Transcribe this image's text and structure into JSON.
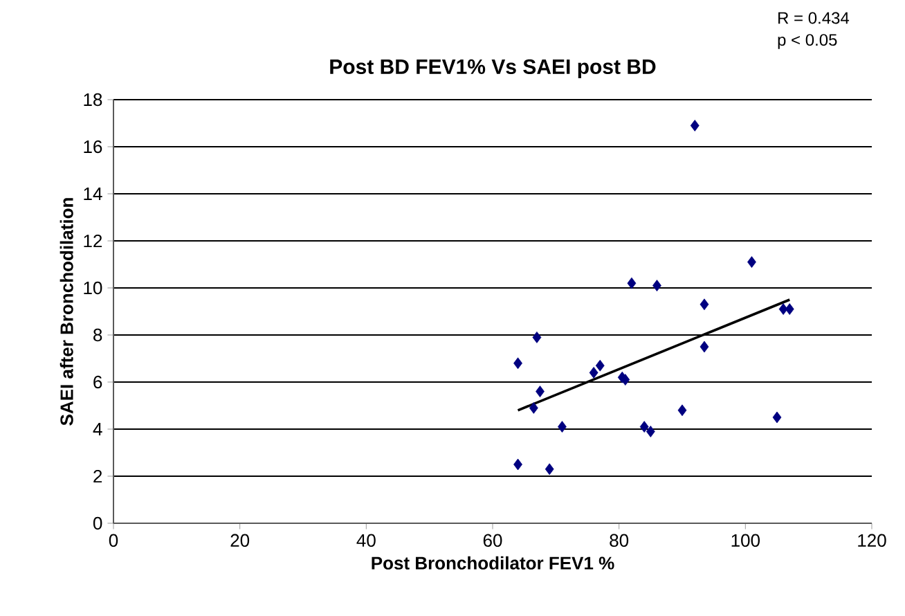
{
  "chart_data": {
    "type": "scatter",
    "title": "Post BD FEV1% Vs SAEI post BD",
    "xlabel": "Post Bronchodilator FEV1 %",
    "ylabel": "SAEI after Bronchodilation",
    "annotations": [
      "R = 0.434",
      "p  <  0.05"
    ],
    "series": [
      {
        "color": "#000080",
        "marker": "diamond",
        "x": [
          64,
          64,
          66.5,
          67,
          67.5,
          69,
          71,
          76,
          77,
          80.5,
          81,
          82,
          84,
          85,
          86,
          90,
          92,
          93.5,
          93.5,
          101,
          105,
          106,
          107
        ],
        "values": [
          6.8,
          2.5,
          4.9,
          7.9,
          5.6,
          2.3,
          4.1,
          6.4,
          6.7,
          6.2,
          6.1,
          10.2,
          4.1,
          3.9,
          10.1,
          4.8,
          16.9,
          9.3,
          7.5,
          11.1,
          4.5,
          9.1,
          9.1
        ]
      },
      {
        "type": "line",
        "color": "#000000",
        "x": [
          64,
          107
        ],
        "values": [
          4.8,
          9.5
        ]
      }
    ],
    "xlim": [
      0,
      120
    ],
    "xticks": [
      0,
      20,
      40,
      60,
      80,
      100,
      120
    ],
    "ylim": [
      0,
      18
    ],
    "yticks": [
      0,
      2,
      4,
      6,
      8,
      10,
      12,
      14,
      16,
      18
    ],
    "grid": "y"
  }
}
